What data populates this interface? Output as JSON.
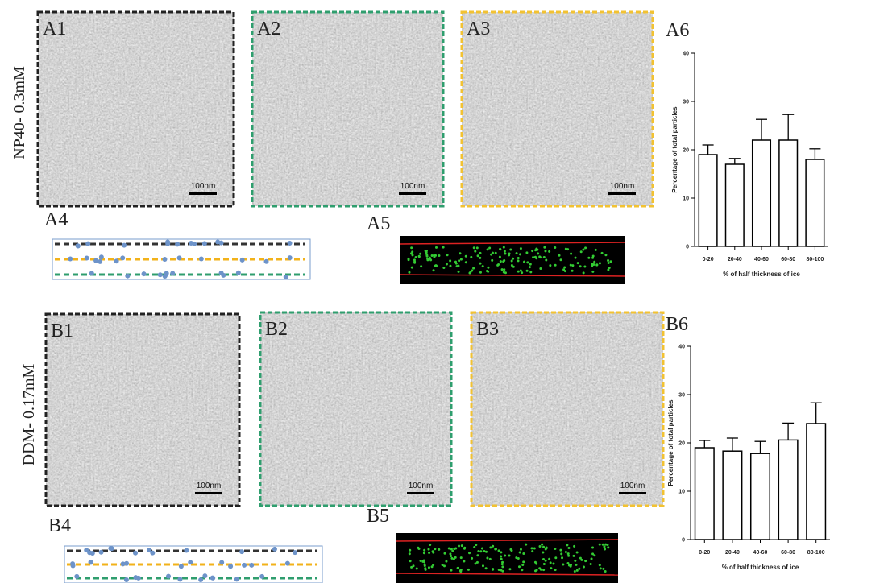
{
  "chart_data": [
    {
      "type": "bar",
      "title": "A6",
      "categories": [
        "0-20",
        "20-40",
        "40-60",
        "60-80",
        "80-100"
      ],
      "values": [
        19,
        17,
        22,
        22,
        18
      ],
      "errors": [
        2,
        1.2,
        4.3,
        5.3,
        2.2
      ],
      "ylim": [
        0,
        40
      ],
      "yticks": [
        0,
        10,
        20,
        30,
        40
      ],
      "y_label": "Percentage of total particles",
      "x_label": "% of half thickness of ice",
      "color": "#ffffff"
    },
    {
      "type": "bar",
      "title": "B6",
      "categories": [
        "0-20",
        "20-40",
        "40-60",
        "60-80",
        "80-100"
      ],
      "values": [
        19,
        18.3,
        17.8,
        20.6,
        24
      ],
      "errors": [
        1.5,
        2.7,
        2.5,
        3.5,
        4.3
      ],
      "ylim": [
        0,
        40
      ],
      "yticks": [
        0,
        10,
        20,
        30,
        40
      ],
      "y_label": "Percentage of total particles",
      "x_label": "% of half thickness of ice",
      "color": "#ffffff"
    }
  ],
  "row_labels": [
    "NP40- 0.3mM",
    "DDM- 0.17mM"
  ],
  "panels": [
    {
      "label": "A1",
      "scale_bar": "100nm"
    },
    {
      "label": "A2",
      "scale_bar": "100nm"
    },
    {
      "label": "A3",
      "scale_bar": "100nm"
    },
    {
      "label": "B1",
      "scale_bar": "100nm"
    },
    {
      "label": "B2",
      "scale_bar": "100nm"
    },
    {
      "label": "B3",
      "scale_bar": "100nm"
    }
  ],
  "diagram_labels": [
    "A4",
    "A5",
    "B4",
    "B5"
  ]
}
